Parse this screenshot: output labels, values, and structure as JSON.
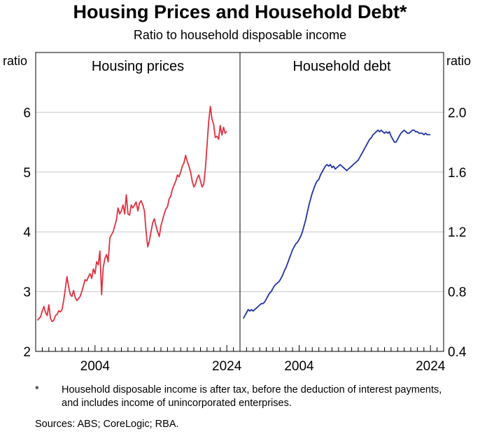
{
  "title": "Housing Prices and Household Debt*",
  "subtitle": "Ratio to household disposable income",
  "footnote": {
    "marker": "*",
    "text": "Household disposable income is after tax, before the deduction of interest payments, and includes income of unincorporated enterprises."
  },
  "sources": "Sources: ABS; CoreLogic; RBA.",
  "colors": {
    "housing": "#e0303f",
    "debt": "#1f33a8",
    "grid": "#c8c8c8"
  },
  "chart_data": [
    {
      "type": "line",
      "panel_title": "Housing prices",
      "ylabel": "ratio",
      "ylim": [
        2,
        7
      ],
      "yticks": [
        2,
        3,
        4,
        5,
        6
      ],
      "xlim": [
        1995,
        2026
      ],
      "xticks": [
        2004,
        2024
      ],
      "series": [
        {
          "color": "#e0303f",
          "x": [
            1995.25,
            1995.5,
            1995.75,
            1996.0,
            1996.25,
            1996.5,
            1996.75,
            1997.0,
            1997.25,
            1997.5,
            1997.75,
            1998.0,
            1998.25,
            1998.5,
            1998.75,
            1999.0,
            1999.25,
            1999.5,
            1999.75,
            2000.0,
            2000.25,
            2000.5,
            2000.75,
            2001.0,
            2001.25,
            2001.5,
            2001.75,
            2002.0,
            2002.25,
            2002.5,
            2002.75,
            2003.0,
            2003.25,
            2003.5,
            2003.75,
            2004.0,
            2004.25,
            2004.5,
            2004.75,
            2005.0,
            2005.25,
            2005.5,
            2005.75,
            2006.0,
            2006.25,
            2006.5,
            2006.75,
            2007.0,
            2007.25,
            2007.5,
            2007.75,
            2008.0,
            2008.25,
            2008.5,
            2008.75,
            2009.0,
            2009.25,
            2009.5,
            2009.75,
            2010.0,
            2010.25,
            2010.5,
            2010.75,
            2011.0,
            2011.25,
            2011.5,
            2011.75,
            2012.0,
            2012.25,
            2012.5,
            2012.75,
            2013.0,
            2013.25,
            2013.5,
            2013.75,
            2014.0,
            2014.25,
            2014.5,
            2014.75,
            2015.0,
            2015.25,
            2015.5,
            2015.75,
            2016.0,
            2016.25,
            2016.5,
            2016.75,
            2017.0,
            2017.25,
            2017.5,
            2017.75,
            2018.0,
            2018.25,
            2018.5,
            2018.75,
            2019.0,
            2019.25,
            2019.5,
            2019.75,
            2020.0,
            2020.25,
            2020.5,
            2020.75,
            2021.0,
            2021.25,
            2021.5,
            2021.75,
            2022.0,
            2022.25,
            2022.5,
            2022.75,
            2023.0,
            2023.25,
            2023.5,
            2023.75,
            2024.0
          ],
          "values": [
            2.52,
            2.55,
            2.58,
            2.68,
            2.75,
            2.65,
            2.6,
            2.78,
            2.55,
            2.5,
            2.52,
            2.6,
            2.62,
            2.68,
            2.66,
            2.7,
            2.85,
            3.05,
            3.25,
            3.08,
            2.95,
            2.92,
            3.02,
            2.9,
            2.85,
            2.88,
            2.92,
            3.0,
            3.1,
            3.2,
            3.18,
            3.25,
            3.3,
            3.22,
            3.38,
            3.3,
            3.5,
            3.45,
            3.68,
            2.95,
            3.4,
            3.55,
            3.62,
            3.5,
            3.9,
            3.95,
            4.0,
            4.1,
            4.2,
            4.4,
            4.3,
            4.35,
            4.45,
            4.3,
            4.62,
            4.3,
            4.28,
            4.45,
            4.4,
            4.45,
            4.5,
            4.35,
            4.48,
            4.52,
            4.45,
            4.35,
            4.0,
            3.75,
            3.85,
            4.0,
            4.15,
            4.22,
            4.1,
            4.0,
            3.92,
            4.1,
            4.2,
            4.3,
            4.38,
            4.42,
            4.55,
            4.6,
            4.72,
            4.78,
            4.85,
            4.95,
            4.92,
            5.0,
            5.1,
            5.15,
            5.28,
            5.18,
            5.1,
            5.0,
            4.85,
            4.75,
            4.8,
            4.9,
            4.95,
            4.85,
            4.75,
            4.8,
            5.05,
            5.45,
            5.85,
            6.1,
            5.88,
            5.8,
            5.58,
            5.6,
            5.55,
            5.78,
            5.62,
            5.75,
            5.65,
            5.68
          ]
        }
      ]
    },
    {
      "type": "line",
      "panel_title": "Household debt",
      "ylabel": "ratio",
      "ylim": [
        0.4,
        2.4
      ],
      "yticks": [
        0.4,
        0.8,
        1.2,
        1.6,
        2.0
      ],
      "xlim": [
        1995,
        2026
      ],
      "xticks": [
        2004,
        2024
      ],
      "series": [
        {
          "color": "#1f33a8",
          "x": [
            1995.5,
            1995.75,
            1996.0,
            1996.25,
            1996.5,
            1996.75,
            1997.0,
            1997.25,
            1997.5,
            1997.75,
            1998.0,
            1998.25,
            1998.5,
            1998.75,
            1999.0,
            1999.25,
            1999.5,
            1999.75,
            2000.0,
            2000.25,
            2000.5,
            2000.75,
            2001.0,
            2001.25,
            2001.5,
            2001.75,
            2002.0,
            2002.25,
            2002.5,
            2002.75,
            2003.0,
            2003.25,
            2003.5,
            2003.75,
            2004.0,
            2004.25,
            2004.5,
            2004.75,
            2005.0,
            2005.25,
            2005.5,
            2005.75,
            2006.0,
            2006.25,
            2006.5,
            2006.75,
            2007.0,
            2007.25,
            2007.5,
            2007.75,
            2008.0,
            2008.25,
            2008.5,
            2008.75,
            2009.0,
            2009.25,
            2009.5,
            2009.75,
            2010.0,
            2010.25,
            2010.5,
            2010.75,
            2011.0,
            2011.25,
            2011.5,
            2011.75,
            2012.0,
            2012.25,
            2012.5,
            2012.75,
            2013.0,
            2013.25,
            2013.5,
            2013.75,
            2014.0,
            2014.25,
            2014.5,
            2014.75,
            2015.0,
            2015.25,
            2015.5,
            2015.75,
            2016.0,
            2016.25,
            2016.5,
            2016.75,
            2017.0,
            2017.25,
            2017.5,
            2017.75,
            2018.0,
            2018.25,
            2018.5,
            2018.75,
            2019.0,
            2019.25,
            2019.5,
            2019.75,
            2020.0,
            2020.25,
            2020.5,
            2020.75,
            2021.0,
            2021.25,
            2021.5,
            2021.75,
            2022.0,
            2022.25,
            2022.5,
            2022.75,
            2023.0,
            2023.25,
            2023.5,
            2023.75,
            2024.0
          ],
          "values": [
            0.62,
            0.64,
            0.66,
            0.68,
            0.67,
            0.68,
            0.67,
            0.68,
            0.69,
            0.7,
            0.71,
            0.72,
            0.72,
            0.73,
            0.75,
            0.77,
            0.79,
            0.8,
            0.82,
            0.84,
            0.85,
            0.86,
            0.87,
            0.89,
            0.91,
            0.94,
            0.96,
            0.99,
            1.02,
            1.05,
            1.08,
            1.1,
            1.12,
            1.13,
            1.15,
            1.17,
            1.2,
            1.24,
            1.28,
            1.33,
            1.38,
            1.42,
            1.46,
            1.49,
            1.52,
            1.54,
            1.55,
            1.58,
            1.6,
            1.62,
            1.64,
            1.65,
            1.64,
            1.65,
            1.63,
            1.64,
            1.62,
            1.63,
            1.64,
            1.65,
            1.64,
            1.63,
            1.62,
            1.61,
            1.62,
            1.63,
            1.64,
            1.65,
            1.66,
            1.67,
            1.68,
            1.7,
            1.72,
            1.74,
            1.76,
            1.78,
            1.8,
            1.82,
            1.83,
            1.85,
            1.86,
            1.87,
            1.88,
            1.87,
            1.88,
            1.87,
            1.86,
            1.87,
            1.86,
            1.87,
            1.84,
            1.82,
            1.8,
            1.8,
            1.82,
            1.84,
            1.86,
            1.87,
            1.88,
            1.87,
            1.86,
            1.86,
            1.87,
            1.88,
            1.88,
            1.87,
            1.87,
            1.86,
            1.86,
            1.86,
            1.85,
            1.86,
            1.85,
            1.85,
            1.85
          ]
        }
      ]
    }
  ]
}
